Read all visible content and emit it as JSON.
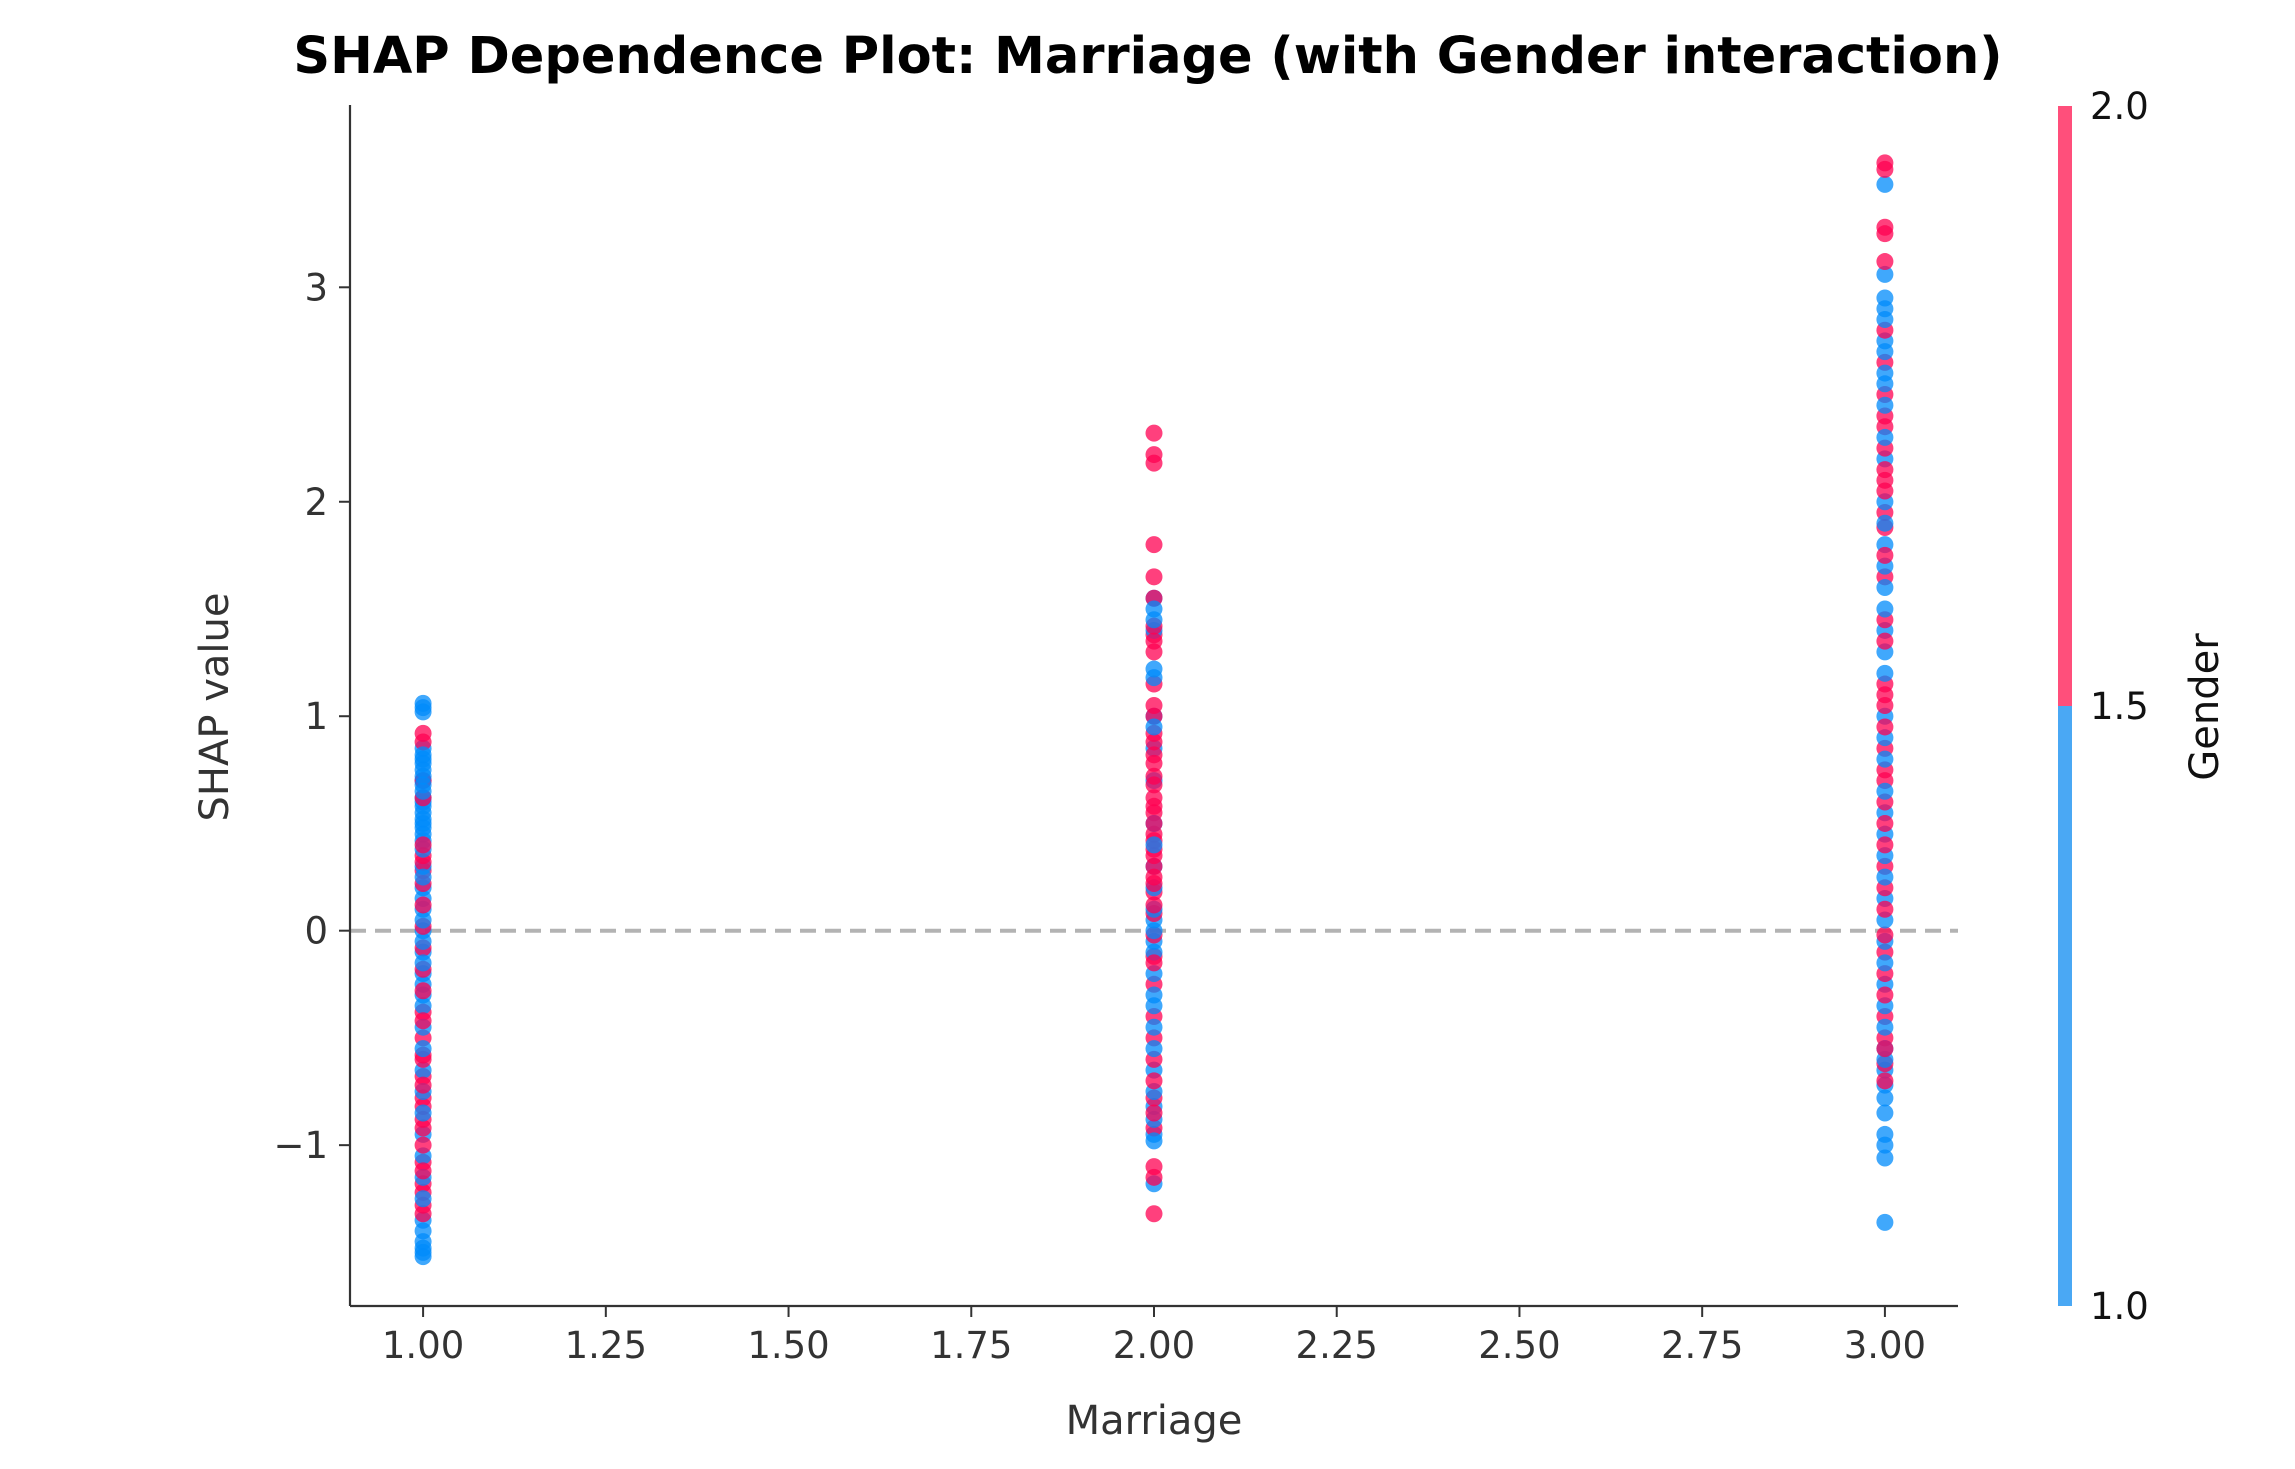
{
  "chart_data": {
    "type": "scatter",
    "title": "SHAP Dependence Plot: Marriage (with Gender interaction)",
    "xlabel": "Marriage",
    "ylabel": "SHAP value",
    "xlim": [
      0.9,
      3.1
    ],
    "ylim": [
      -1.75,
      3.85
    ],
    "xticks": [
      1.0,
      1.25,
      1.5,
      1.75,
      2.0,
      2.25,
      2.5,
      2.75,
      3.0
    ],
    "xtick_labels": [
      "1.00",
      "1.25",
      "1.50",
      "1.75",
      "2.00",
      "2.25",
      "2.50",
      "2.75",
      "3.00"
    ],
    "yticks": [
      -1,
      0,
      1,
      2,
      3
    ],
    "ytick_labels": [
      "−1",
      "0",
      "1",
      "2",
      "3"
    ],
    "reference_line": {
      "y": 0,
      "style": "dashed",
      "color": "#b3b3b3"
    },
    "colorbar": {
      "label": "Gender",
      "range": [
        1.0,
        2.0
      ],
      "ticks": [
        1.0,
        1.5,
        2.0
      ],
      "tick_labels": [
        "1.0",
        "1.5",
        "2.0"
      ],
      "low_color": "#008bfb",
      "high_color": "#ff0052"
    },
    "series": [
      {
        "x": 1.0,
        "gender_1": [
          1.06,
          1.04,
          1.02,
          0.85,
          0.82,
          0.8,
          0.78,
          0.75,
          0.72,
          0.7,
          0.68,
          0.65,
          0.62,
          0.6,
          0.58,
          0.55,
          0.52,
          0.5,
          0.48,
          0.45,
          0.42,
          0.38,
          0.3,
          0.25,
          0.2,
          0.15,
          0.1,
          0.05,
          0.0,
          -0.05,
          -0.1,
          -0.15,
          -0.2,
          -0.25,
          -0.3,
          -0.35,
          -0.45,
          -0.55,
          -0.65,
          -0.75,
          -0.85,
          -0.95,
          -1.05,
          -1.15,
          -1.25,
          -1.35,
          -1.4,
          -1.45,
          -1.48,
          -1.5,
          -1.52
        ],
        "gender_2": [
          0.92,
          0.88,
          0.7,
          0.62,
          0.4,
          0.35,
          0.32,
          0.28,
          0.22,
          0.12,
          0.02,
          -0.08,
          -0.18,
          -0.28,
          -0.38,
          -0.42,
          -0.5,
          -0.58,
          -0.6,
          -0.68,
          -0.72,
          -0.78,
          -0.82,
          -0.88,
          -0.92,
          -1.0,
          -1.08,
          -1.12,
          -1.18,
          -1.22,
          -1.28,
          -1.32
        ]
      },
      {
        "x": 2.0,
        "gender_1": [
          1.55,
          1.5,
          1.45,
          1.4,
          1.22,
          1.18,
          1.0,
          0.95,
          0.85,
          0.7,
          0.5,
          0.4,
          0.3,
          0.2,
          0.1,
          0.05,
          0.0,
          -0.05,
          -0.1,
          -0.2,
          -0.3,
          -0.35,
          -0.45,
          -0.55,
          -0.65,
          -0.75,
          -0.82,
          -0.88,
          -0.95,
          -0.98,
          -1.18
        ],
        "gender_2": [
          2.32,
          2.22,
          2.18,
          1.8,
          1.65,
          1.55,
          1.42,
          1.38,
          1.35,
          1.3,
          1.15,
          1.05,
          1.0,
          0.92,
          0.88,
          0.82,
          0.78,
          0.72,
          0.68,
          0.62,
          0.58,
          0.55,
          0.5,
          0.45,
          0.42,
          0.38,
          0.35,
          0.3,
          0.25,
          0.22,
          0.18,
          0.12,
          0.08,
          -0.02,
          -0.12,
          -0.15,
          -0.25,
          -0.4,
          -0.5,
          -0.6,
          -0.7,
          -0.78,
          -0.85,
          -0.92,
          -1.1,
          -1.15,
          -1.32
        ]
      },
      {
        "x": 3.0,
        "gender_1": [
          3.48,
          3.06,
          2.95,
          2.9,
          2.85,
          2.75,
          2.7,
          2.6,
          2.55,
          2.45,
          2.3,
          2.2,
          2.0,
          1.9,
          1.8,
          1.7,
          1.6,
          1.5,
          1.4,
          1.3,
          1.2,
          1.0,
          0.9,
          0.8,
          0.65,
          0.55,
          0.45,
          0.35,
          0.25,
          0.15,
          0.05,
          -0.05,
          -0.15,
          -0.25,
          -0.35,
          -0.45,
          -0.55,
          -0.6,
          -0.65,
          -0.72,
          -0.78,
          -0.85,
          -0.95,
          -1.0,
          -1.06,
          -1.36
        ],
        "gender_2": [
          3.58,
          3.55,
          3.28,
          3.25,
          3.12,
          2.8,
          2.65,
          2.5,
          2.4,
          2.35,
          2.25,
          2.15,
          2.1,
          2.05,
          1.95,
          1.88,
          1.75,
          1.65,
          1.45,
          1.35,
          1.15,
          1.1,
          1.05,
          0.95,
          0.85,
          0.75,
          0.7,
          0.6,
          0.5,
          0.4,
          0.3,
          0.2,
          0.1,
          -0.02,
          -0.1,
          -0.2,
          -0.3,
          -0.4,
          -0.5,
          -0.55,
          -0.62,
          -0.7
        ]
      }
    ]
  }
}
